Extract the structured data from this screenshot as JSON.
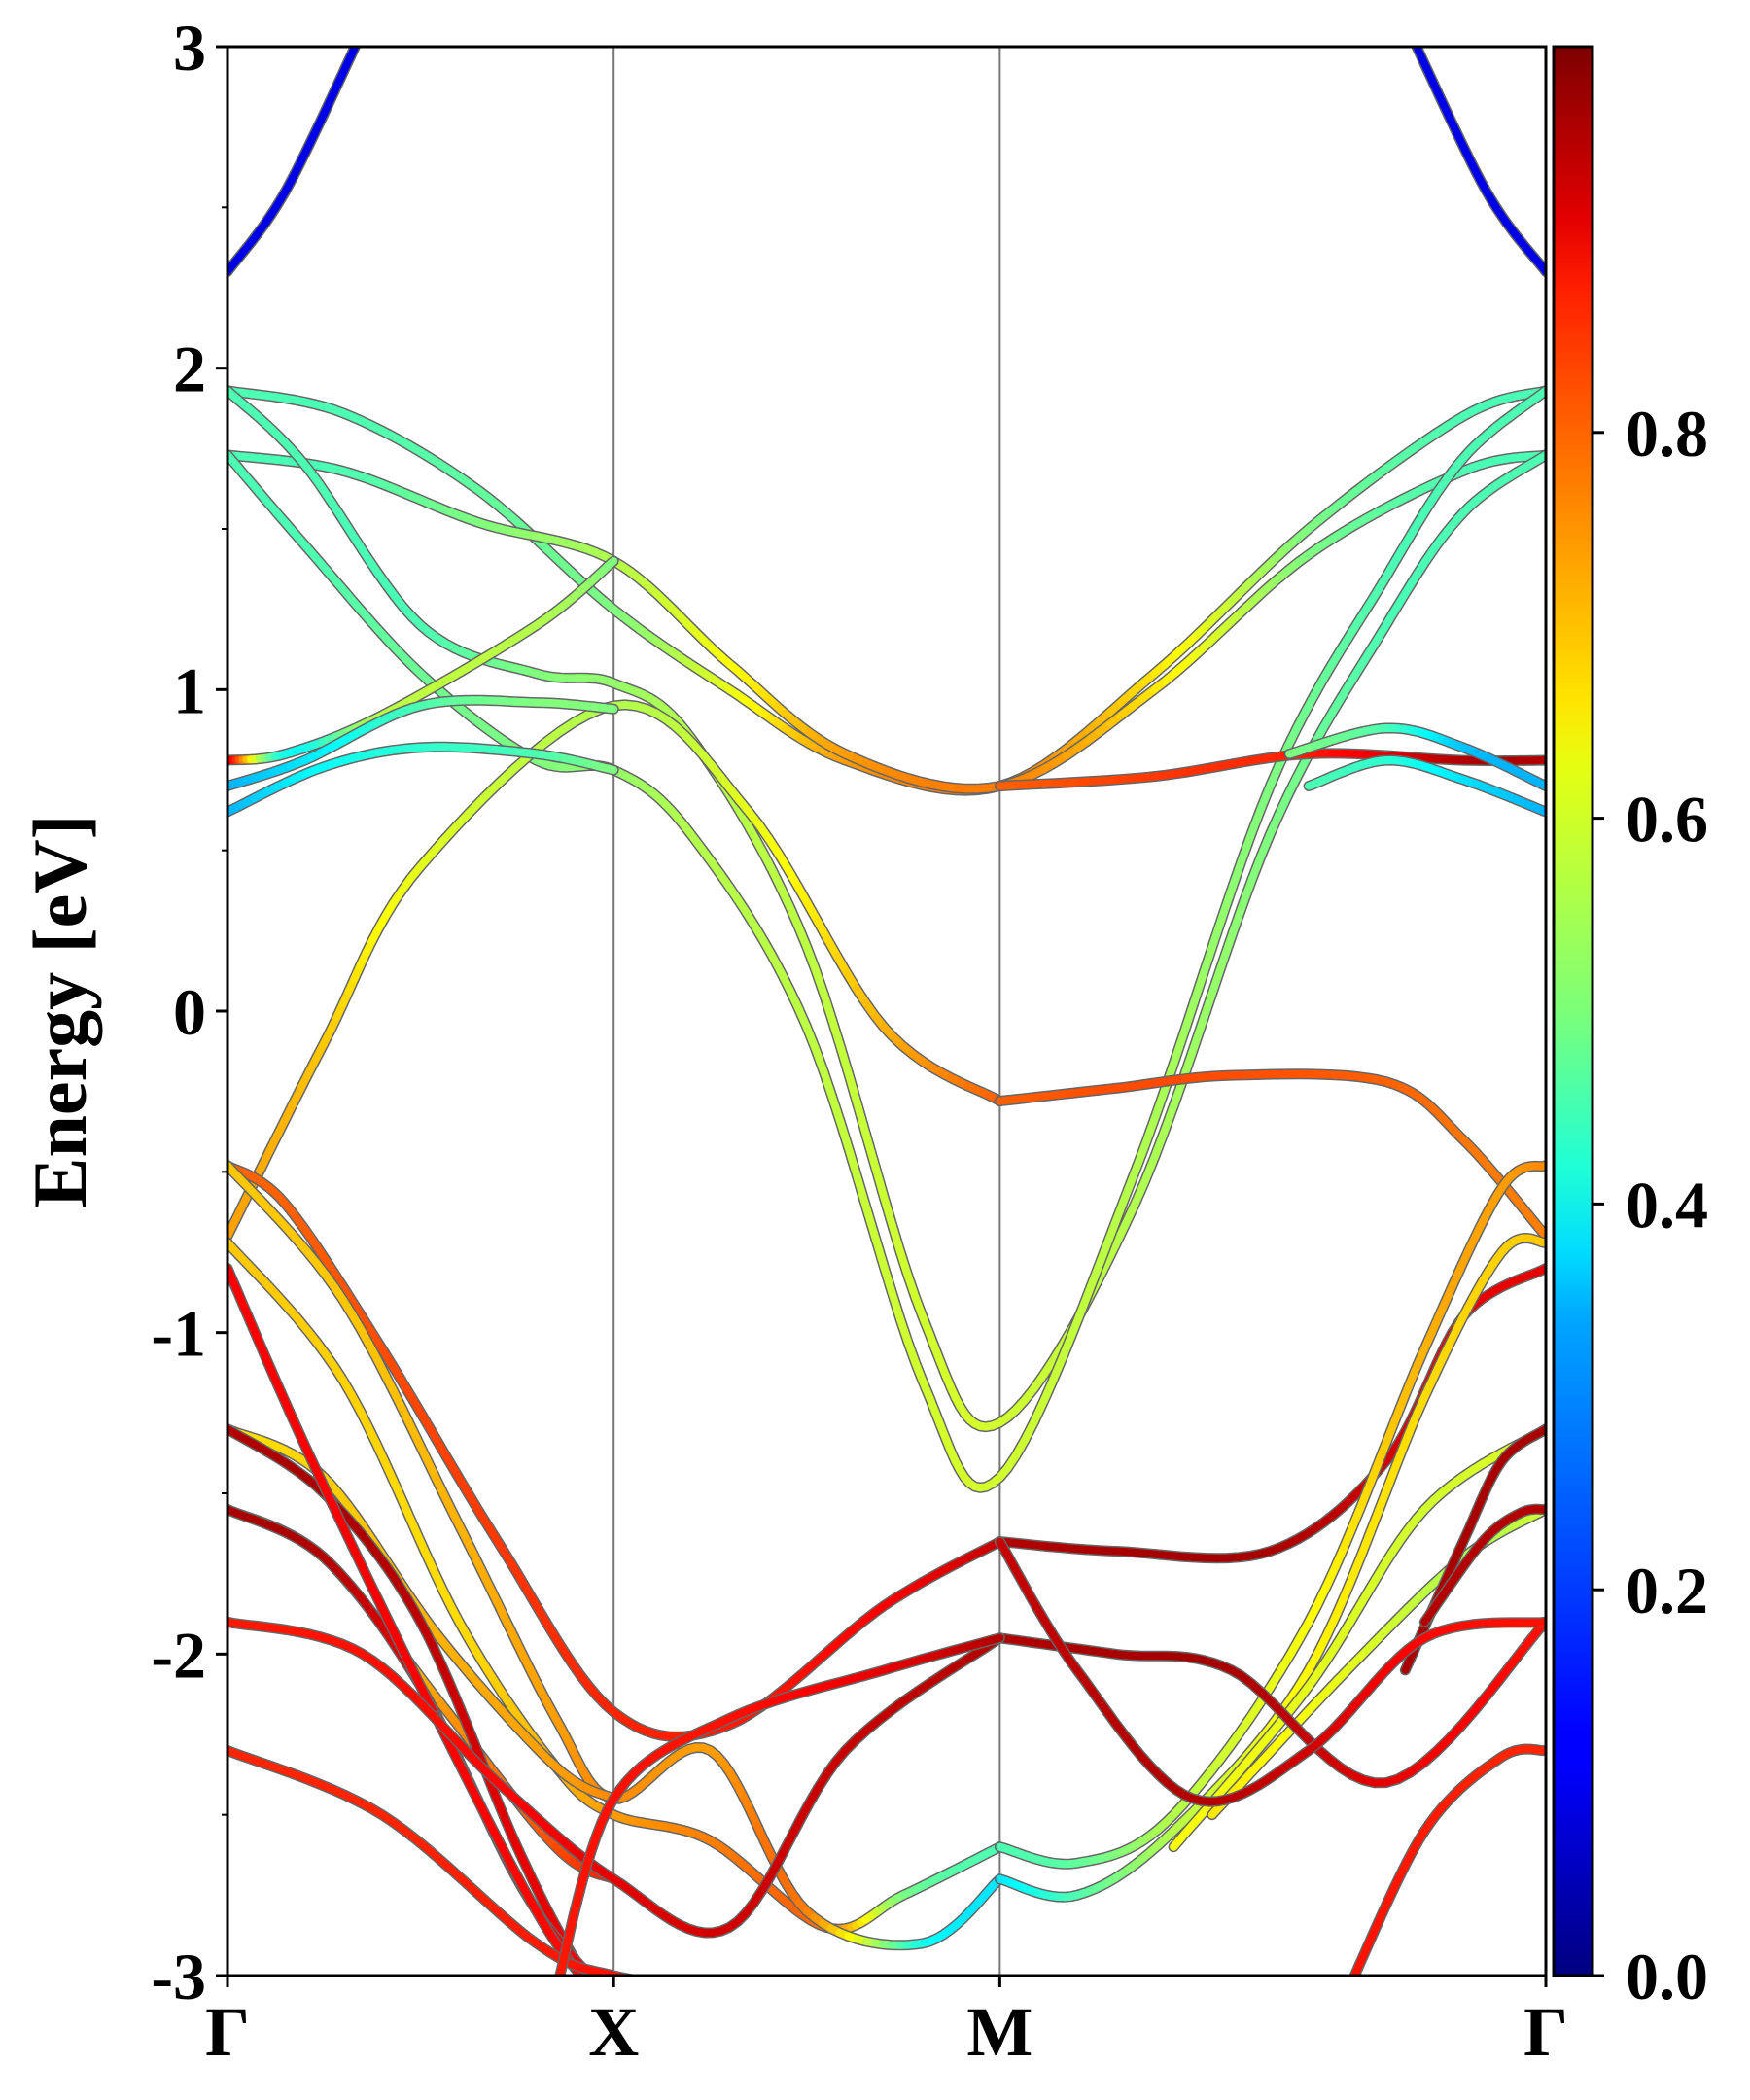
{
  "chart_data": {
    "type": "line",
    "title": "",
    "xlabel": "",
    "ylabel": "Energy [eV]",
    "ylim": [
      -3,
      3
    ],
    "y_ticks": [
      "3",
      "2",
      "1",
      "0",
      "-1",
      "-2",
      "-3"
    ],
    "y_tick_values": [
      3,
      2,
      1,
      0,
      -1,
      -2,
      -3
    ],
    "k_points": [
      {
        "label": "Γ",
        "k": 0
      },
      {
        "label": "X",
        "k": 1
      },
      {
        "label": "M",
        "k": 2
      },
      {
        "label": "Γ",
        "k": 3.414
      }
    ],
    "grid": false,
    "colormap": "jet",
    "colorbar": {
      "range": [
        0.0,
        1.0
      ],
      "ticks": [
        "0.0",
        "0.2",
        "0.4",
        "0.6",
        "0.8"
      ],
      "tick_values": [
        0.0,
        0.2,
        0.4,
        0.6,
        0.8
      ]
    },
    "bands": [
      {
        "k": [
          0,
          0.15,
          0.35
        ],
        "E": [
          2.3,
          2.55,
          3.05
        ],
        "w": [
          0.1,
          0.1,
          0.1
        ]
      },
      {
        "k": [
          3.06,
          3.26,
          3.414
        ],
        "E": [
          3.05,
          2.55,
          2.3
        ],
        "w": [
          0.1,
          0.1,
          0.1
        ]
      },
      {
        "k": [
          0,
          0.3,
          0.65,
          1.0,
          1.3,
          1.6,
          2.0,
          2.4,
          2.8,
          3.2,
          3.414
        ],
        "E": [
          1.93,
          1.86,
          1.62,
          1.25,
          1.0,
          0.78,
          0.7,
          1.05,
          1.5,
          1.85,
          1.93
        ],
        "w": [
          0.45,
          0.45,
          0.47,
          0.5,
          0.6,
          0.72,
          0.75,
          0.65,
          0.5,
          0.45,
          0.45
        ]
      },
      {
        "k": [
          0,
          0.3,
          0.65,
          1.0,
          1.3,
          1.6,
          2.0,
          2.4,
          2.8,
          3.2,
          3.414
        ],
        "E": [
          1.73,
          1.68,
          1.52,
          1.4,
          1.08,
          0.8,
          0.7,
          1.0,
          1.42,
          1.68,
          1.73
        ],
        "w": [
          0.45,
          0.45,
          0.5,
          0.55,
          0.62,
          0.72,
          0.75,
          0.65,
          0.5,
          0.45,
          0.45
        ]
      },
      {
        "k": [
          0,
          0.2,
          0.5,
          0.8,
          1.0,
          1.2,
          1.5,
          1.8,
          2.0,
          2.35,
          2.7,
          3.0,
          3.2,
          3.414
        ],
        "E": [
          1.93,
          1.7,
          1.2,
          1.05,
          1.02,
          0.85,
          0.2,
          -0.95,
          -1.28,
          -0.6,
          0.55,
          1.2,
          1.55,
          1.73
        ],
        "w": [
          0.45,
          0.45,
          0.45,
          0.5,
          0.52,
          0.55,
          0.56,
          0.58,
          0.58,
          0.55,
          0.5,
          0.45,
          0.45,
          0.45
        ]
      },
      {
        "k": [
          0,
          0.2,
          0.5,
          0.8,
          1.0,
          1.2,
          1.5,
          1.8,
          2.0,
          2.35,
          2.7,
          3.0,
          3.2,
          3.414
        ],
        "E": [
          1.73,
          1.45,
          1.05,
          0.78,
          0.75,
          0.55,
          -0.05,
          -1.15,
          -1.45,
          -0.5,
          0.7,
          1.35,
          1.72,
          1.93
        ],
        "w": [
          0.45,
          0.45,
          0.48,
          0.5,
          0.52,
          0.55,
          0.56,
          0.58,
          0.58,
          0.55,
          0.5,
          0.45,
          0.45,
          0.45
        ]
      },
      {
        "k": [
          0,
          0.25,
          0.5,
          1.0,
          1.35,
          1.7,
          2.0
        ],
        "E": [
          -0.7,
          -0.1,
          0.45,
          0.95,
          0.62,
          -0.05,
          -0.28
        ],
        "w": [
          0.72,
          0.68,
          0.6,
          0.55,
          0.6,
          0.7,
          0.78
        ]
      },
      {
        "k": [
          2.0,
          2.3,
          2.6,
          3.0,
          3.2,
          3.414
        ],
        "E": [
          -0.28,
          -0.24,
          -0.2,
          -0.22,
          -0.4,
          -0.7
        ],
        "w": [
          0.78,
          0.8,
          0.8,
          0.78,
          0.76,
          0.75
        ]
      },
      {
        "k": [
          0,
          0.15,
          0.4,
          0.8,
          1.0
        ],
        "E": [
          0.78,
          0.8,
          0.92,
          1.2,
          1.4
        ],
        "w": [
          0.95,
          0.4,
          0.55,
          0.55,
          0.5
        ]
      },
      {
        "k": [
          0,
          0.2,
          0.5,
          0.8,
          1.0
        ],
        "E": [
          0.7,
          0.78,
          0.95,
          0.96,
          0.94
        ],
        "w": [
          0.3,
          0.35,
          0.45,
          0.5,
          0.5
        ]
      },
      {
        "k": [
          0,
          0.25,
          0.5,
          0.8,
          1.0
        ],
        "E": [
          0.62,
          0.76,
          0.82,
          0.8,
          0.75
        ],
        "w": [
          0.3,
          0.38,
          0.42,
          0.45,
          0.5
        ]
      },
      {
        "k": [
          2.0,
          2.4,
          2.8,
          3.2,
          3.414
        ],
        "E": [
          0.7,
          0.73,
          0.8,
          0.78,
          0.78
        ],
        "w": [
          0.78,
          0.82,
          0.85,
          0.95,
          0.95
        ]
      },
      {
        "k": [
          2.75,
          3.0,
          3.2,
          3.414
        ],
        "E": [
          0.8,
          0.88,
          0.82,
          0.7
        ],
        "w": [
          0.5,
          0.45,
          0.32,
          0.3
        ]
      },
      {
        "k": [
          2.8,
          3.0,
          3.2,
          3.414
        ],
        "E": [
          0.7,
          0.78,
          0.72,
          0.62
        ],
        "w": [
          0.45,
          0.42,
          0.35,
          0.3
        ]
      },
      {
        "k": [
          0,
          0.15,
          0.4,
          0.7,
          1.0,
          1.3,
          1.7,
          2.0
        ],
        "E": [
          -0.48,
          -0.6,
          -1.05,
          -1.65,
          -2.18,
          -2.22,
          -1.85,
          -1.65
        ],
        "w": [
          0.78,
          0.78,
          0.8,
          0.82,
          0.84,
          0.85,
          0.88,
          0.93
        ]
      },
      {
        "k": [
          2.0,
          2.3,
          2.7,
          3.0,
          3.2,
          3.414
        ],
        "E": [
          -1.65,
          -1.68,
          -1.68,
          -1.4,
          -0.95,
          -0.8
        ],
        "w": [
          0.95,
          0.96,
          0.96,
          0.92,
          0.9,
          0.9
        ]
      },
      {
        "k": [
          0,
          0.3,
          0.6,
          0.85,
          1.0,
          1.25,
          1.55,
          1.75,
          2.0
        ],
        "E": [
          -0.72,
          -1.15,
          -1.9,
          -2.35,
          -2.5,
          -2.58,
          -2.85,
          -2.75,
          -2.6
        ],
        "w": [
          0.68,
          0.67,
          0.66,
          0.7,
          0.72,
          0.75,
          0.76,
          0.5,
          0.45
        ]
      },
      {
        "k": [
          0,
          0.3,
          0.6,
          0.85,
          1.0,
          1.25,
          1.5,
          1.8,
          2.0
        ],
        "E": [
          -0.48,
          -0.9,
          -1.6,
          -2.2,
          -2.45,
          -2.3,
          -2.8,
          -2.9,
          -2.7
        ],
        "w": [
          0.68,
          0.68,
          0.7,
          0.72,
          0.74,
          0.72,
          0.75,
          0.4,
          0.35
        ]
      },
      {
        "k": [
          2.0,
          2.2,
          2.45,
          2.8,
          3.1,
          3.3,
          3.414
        ],
        "E": [
          -2.6,
          -2.65,
          -2.5,
          -1.9,
          -1.05,
          -0.55,
          -0.48
        ],
        "w": [
          0.45,
          0.47,
          0.55,
          0.62,
          0.7,
          0.72,
          0.74
        ]
      },
      {
        "k": [
          2.0,
          2.2,
          2.45,
          2.8,
          3.1,
          3.3,
          3.414
        ],
        "E": [
          -2.7,
          -2.75,
          -2.55,
          -2.05,
          -1.2,
          -0.75,
          -0.72
        ],
        "w": [
          0.35,
          0.45,
          0.55,
          0.63,
          0.66,
          0.67,
          0.68
        ]
      },
      {
        "k": [
          0,
          0.25,
          0.55,
          0.85,
          1.0
        ],
        "E": [
          -1.3,
          -1.45,
          -1.95,
          -2.35,
          -2.45
        ],
        "w": [
          0.65,
          0.67,
          0.7,
          0.72,
          0.74
        ]
      },
      {
        "k": [
          0,
          0.25,
          0.55,
          0.85,
          1.0
        ],
        "E": [
          -1.55,
          -1.7,
          -2.15,
          -2.6,
          -2.7
        ],
        "w": [
          0.6,
          0.62,
          0.72,
          0.8,
          0.85
        ]
      },
      {
        "k": [
          2.45,
          2.8,
          3.1,
          3.414
        ],
        "E": [
          -2.6,
          -2.1,
          -1.55,
          -1.3
        ],
        "w": [
          0.62,
          0.6,
          0.58,
          0.6
        ]
      },
      {
        "k": [
          2.55,
          2.9,
          3.2,
          3.414
        ],
        "E": [
          -2.5,
          -2.05,
          -1.7,
          -1.55
        ],
        "w": [
          0.65,
          0.6,
          0.55,
          0.58
        ]
      },
      {
        "k": [
          0,
          0.25,
          0.5,
          0.75,
          0.9,
          1.0
        ],
        "E": [
          -1.3,
          -1.5,
          -1.9,
          -2.6,
          -2.95,
          -3.1
        ],
        "w": [
          0.95,
          0.96,
          0.94,
          0.9,
          0.9,
          0.9
        ]
      },
      {
        "k": [
          0,
          0.25,
          0.5,
          0.75,
          0.9,
          1.0
        ],
        "E": [
          -1.55,
          -1.7,
          -2.1,
          -2.7,
          -2.95,
          -3.05
        ],
        "w": [
          0.96,
          0.95,
          0.9,
          0.88,
          0.88,
          0.88
        ]
      },
      {
        "k": [
          0,
          0.2,
          0.5,
          0.8,
          0.95
        ],
        "E": [
          -0.8,
          -1.35,
          -2.1,
          -2.8,
          -3.05
        ],
        "w": [
          0.88,
          0.88,
          0.88,
          0.87,
          0.87
        ]
      },
      {
        "k": [
          3.05,
          3.2,
          3.3,
          3.414
        ],
        "E": [
          -2.05,
          -1.65,
          -1.4,
          -1.3
        ],
        "w": [
          0.96,
          0.96,
          0.96,
          0.96
        ]
      },
      {
        "k": [
          3.1,
          3.25,
          3.35,
          3.414
        ],
        "E": [
          -1.9,
          -1.65,
          -1.56,
          -1.55
        ],
        "w": [
          0.95,
          0.95,
          0.95,
          0.95
        ]
      },
      {
        "k": [
          0,
          0.35,
          0.7,
          1.0,
          1.3,
          1.6,
          2.0
        ],
        "E": [
          -1.9,
          -2.0,
          -2.4,
          -2.7,
          -2.85,
          -2.3,
          -1.95
        ],
        "w": [
          0.85,
          0.86,
          0.87,
          0.9,
          0.92,
          0.93,
          0.95
        ]
      },
      {
        "k": [
          2.0,
          2.3,
          2.6,
          3.0,
          3.414
        ],
        "E": [
          -1.95,
          -2.0,
          -2.05,
          -2.4,
          -1.9
        ],
        "w": [
          0.95,
          0.96,
          0.96,
          0.9,
          0.86
        ]
      },
      {
        "k": [
          2.0,
          2.2,
          2.5,
          2.8,
          3.1,
          3.414
        ],
        "E": [
          -1.65,
          -2.05,
          -2.45,
          -2.3,
          -1.95,
          -1.9
        ],
        "w": [
          0.93,
          0.94,
          0.95,
          0.92,
          0.87,
          0.86
        ]
      },
      {
        "k": [
          0,
          0.4,
          0.8,
          1.0,
          1.3
        ],
        "E": [
          -2.3,
          -2.5,
          -2.9,
          -3.0,
          -3.05
        ],
        "w": [
          0.84,
          0.84,
          0.85,
          0.86,
          0.86
        ]
      },
      {
        "k": [
          0.85,
          1.0,
          1.3,
          1.7,
          2.0
        ],
        "E": [
          -3.05,
          -2.45,
          -2.2,
          -2.05,
          -1.95
        ],
        "w": [
          0.85,
          0.86,
          0.86,
          0.9,
          0.95
        ]
      },
      {
        "k": [
          2.9,
          3.1,
          3.3,
          3.414
        ],
        "E": [
          -3.05,
          -2.55,
          -2.32,
          -2.3
        ],
        "w": [
          0.86,
          0.85,
          0.84,
          0.84
        ]
      }
    ]
  }
}
